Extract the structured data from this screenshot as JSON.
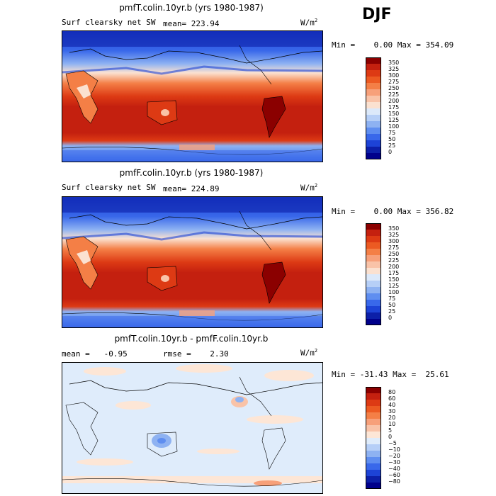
{
  "season": "DJF",
  "panels": [
    {
      "title": "pmfT.colin.10yr.b (yrs 1980-1987)",
      "left_label": "Surf clearsky net SW",
      "mean_label": "mean= 223.94",
      "units": "W/m",
      "units_exp": "2",
      "minmax_label": "Min =    0.00 Max = 354.09",
      "colorbar": {
        "levels": [
          "350",
          "325",
          "300",
          "275",
          "250",
          "225",
          "200",
          "175",
          "150",
          "125",
          "100",
          "75",
          "50",
          "25",
          "0"
        ],
        "colors": [
          "#8b0000",
          "#c4200f",
          "#dd3a14",
          "#ec5a22",
          "#f47f46",
          "#f7a07a",
          "#f9c3a8",
          "#fbe1d0",
          "#dce9fa",
          "#b6cff7",
          "#8eb2f2",
          "#5f8ef0",
          "#3968ea",
          "#1d43d6",
          "#0c1fa8",
          "#00008b"
        ]
      }
    },
    {
      "title": "pmfF.colin.10yr.b (yrs 1980-1987)",
      "left_label": "Surf clearsky net SW",
      "mean_label": "mean= 224.89",
      "units": "W/m",
      "units_exp": "2",
      "minmax_label": "Min =    0.00 Max = 356.82",
      "colorbar": {
        "levels": [
          "350",
          "325",
          "300",
          "275",
          "250",
          "225",
          "200",
          "175",
          "150",
          "125",
          "100",
          "75",
          "50",
          "25",
          "0"
        ],
        "colors": [
          "#8b0000",
          "#c4200f",
          "#dd3a14",
          "#ec5a22",
          "#f47f46",
          "#f7a07a",
          "#f9c3a8",
          "#fbe1d0",
          "#dce9fa",
          "#b6cff7",
          "#8eb2f2",
          "#5f8ef0",
          "#3968ea",
          "#1d43d6",
          "#0c1fa8",
          "#00008b"
        ]
      }
    },
    {
      "title": "pmfT.colin.10yr.b - pmfF.colin.10yr.b",
      "left_label": "mean =   -0.95",
      "mean_label": "rmse =    2.30",
      "units": "W/m",
      "units_exp": "2",
      "minmax_label": "Min = -31.43 Max =  25.61",
      "colorbar": {
        "levels": [
          "80",
          "60",
          "40",
          "30",
          "20",
          "10",
          "5",
          "0",
          "−5",
          "−10",
          "−20",
          "−30",
          "−40",
          "−60",
          "−80"
        ],
        "colors": [
          "#8b0000",
          "#c4200f",
          "#dd3a14",
          "#ec5a22",
          "#f47f46",
          "#f7a07a",
          "#f9c3a8",
          "#fde6d6",
          "#dfecfb",
          "#b6cff7",
          "#8eb2f2",
          "#5f8ef0",
          "#3968ea",
          "#1d43d6",
          "#0c1fa8",
          "#00008b"
        ]
      }
    }
  ]
}
